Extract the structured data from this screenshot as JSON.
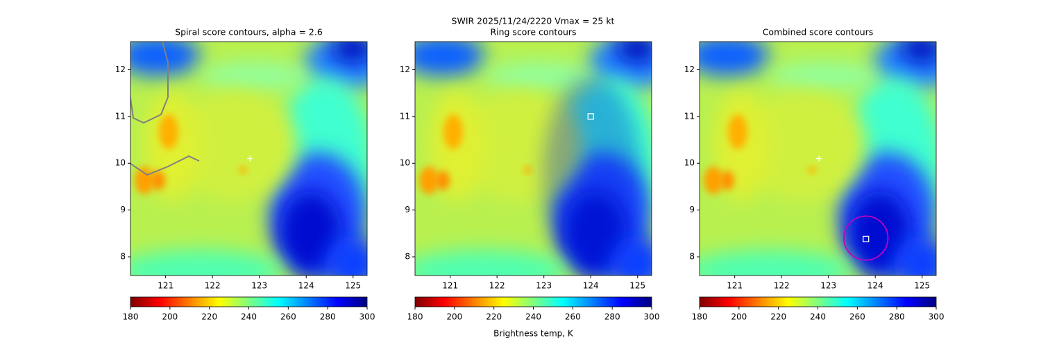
{
  "title": "SWIR  2025/11/24/2220    Vmax = 25 kt",
  "chart_data": [
    {
      "type": "heatmap",
      "title": "Spiral score contours, alpha =  2.6",
      "xlim": [
        120.25,
        125.3
      ],
      "ylim": [
        7.6,
        12.6
      ],
      "xticks": [
        121,
        122,
        123,
        124,
        125
      ],
      "yticks": [
        8,
        9,
        10,
        11,
        12
      ],
      "colormap": "jet_r",
      "colorbar": {
        "lim": [
          180,
          300
        ],
        "ticks": [
          180,
          200,
          220,
          240,
          260,
          280,
          300
        ]
      },
      "markers": [
        {
          "x": 122.8,
          "y": 10.1,
          "symbol": "plus",
          "color": "#ffffff"
        }
      ]
    },
    {
      "type": "heatmap",
      "title": "Ring score contours",
      "xlim": [
        120.25,
        125.3
      ],
      "ylim": [
        7.6,
        12.6
      ],
      "xticks": [
        121,
        122,
        123,
        124,
        125
      ],
      "yticks": [
        8,
        9,
        10,
        11,
        12
      ],
      "colormap": "jet_r",
      "colorbar": {
        "lim": [
          180,
          300
        ],
        "ticks": [
          180,
          200,
          220,
          240,
          260,
          280,
          300
        ],
        "label": "Brightness temp, K"
      },
      "markers": [
        {
          "x": 124.0,
          "y": 11.0,
          "symbol": "square",
          "color": "#ffffff"
        }
      ]
    },
    {
      "type": "heatmap",
      "title": "Combined score contours",
      "xlim": [
        120.25,
        125.3
      ],
      "ylim": [
        7.6,
        12.6
      ],
      "xticks": [
        121,
        122,
        123,
        124,
        125
      ],
      "yticks": [
        8,
        9,
        10,
        11,
        12
      ],
      "colormap": "jet_r",
      "colorbar": {
        "lim": [
          180,
          300
        ],
        "ticks": [
          180,
          200,
          220,
          240,
          260,
          280,
          300
        ]
      },
      "markers": [
        {
          "x": 122.8,
          "y": 10.1,
          "symbol": "plus",
          "color": "#ffffff"
        },
        {
          "x": 123.8,
          "y": 8.38,
          "symbol": "square",
          "color": "#ffffff"
        },
        {
          "x": 123.8,
          "y": 8.4,
          "symbol": "circle",
          "radius": 0.47,
          "color": "#c000c0"
        }
      ]
    }
  ]
}
